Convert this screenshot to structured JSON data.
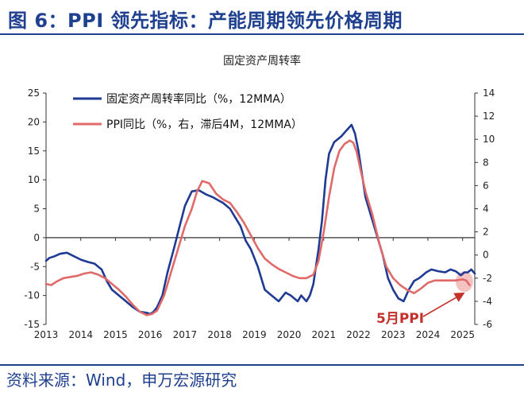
{
  "figure": {
    "title": "图 6：PPI 领先指标：产能周期领先价格周期",
    "source": "资料来源：Wind，申万宏源研究"
  },
  "colors": {
    "title_blue": "#1f3f8f",
    "series_blue": "#1f3a93",
    "series_red": "#e06a6a",
    "annotation_red": "#c4302b",
    "highlight": "#f2b7b5"
  },
  "chart_data": {
    "type": "line",
    "title": "固定资产周转率",
    "annotation": "5月PPI",
    "x_labels": [
      "2013",
      "2014",
      "2015",
      "2016",
      "2017",
      "2018",
      "2019",
      "2020",
      "2021",
      "2022",
      "2023",
      "2024",
      "2025"
    ],
    "x_range": [
      2013.0,
      2025.35
    ],
    "y_left": {
      "range": [
        -15,
        25
      ],
      "ticks": [
        25,
        20,
        15,
        10,
        5,
        0,
        -5,
        -10,
        -15
      ]
    },
    "y_right": {
      "range": [
        -6,
        14
      ],
      "ticks": [
        14,
        12,
        10,
        8,
        6,
        4,
        2,
        0,
        -2,
        -4,
        -6
      ]
    },
    "legend_position": "top-left",
    "series": [
      {
        "name": "固定资产周转率同比（%，12MMA）",
        "axis": "left",
        "x": [
          2013.0,
          2013.1,
          2013.25,
          2013.4,
          2013.6,
          2013.8,
          2014.0,
          2014.2,
          2014.4,
          2014.6,
          2014.75,
          2014.9,
          2015.1,
          2015.3,
          2015.5,
          2015.7,
          2015.9,
          2016.0,
          2016.1,
          2016.2,
          2016.35,
          2016.5,
          2016.7,
          2016.85,
          2017.0,
          2017.2,
          2017.4,
          2017.6,
          2017.8,
          2017.95,
          2018.1,
          2018.3,
          2018.45,
          2018.6,
          2018.75,
          2018.9,
          2019.1,
          2019.3,
          2019.5,
          2019.7,
          2019.9,
          2020.05,
          2020.15,
          2020.25,
          2020.35,
          2020.5,
          2020.6,
          2020.7,
          2020.85,
          2020.95,
          2021.05,
          2021.15,
          2021.3,
          2021.5,
          2021.65,
          2021.8,
          2021.9,
          2022.0,
          2022.1,
          2022.2,
          2022.35,
          2022.5,
          2022.7,
          2022.85,
          2023.0,
          2023.15,
          2023.3,
          2023.45,
          2023.6,
          2023.75,
          2023.85,
          2023.95,
          2024.1,
          2024.3,
          2024.5,
          2024.65,
          2024.8,
          2024.95,
          2025.05,
          2025.15,
          2025.25,
          2025.35
        ],
        "values": [
          -4.0,
          -3.5,
          -3.2,
          -2.8,
          -2.6,
          -3.2,
          -3.8,
          -4.2,
          -4.5,
          -5.5,
          -7.5,
          -9.0,
          -10.0,
          -11.0,
          -12.0,
          -12.8,
          -13.0,
          -13.2,
          -12.8,
          -12.0,
          -10.0,
          -6.0,
          -1.5,
          2.0,
          5.5,
          8.0,
          8.2,
          7.5,
          7.0,
          6.5,
          6.0,
          5.0,
          3.5,
          2.0,
          -0.5,
          -2.0,
          -5.0,
          -9.0,
          -10.0,
          -11.0,
          -9.5,
          -10.0,
          -10.5,
          -11.0,
          -10.0,
          -11.0,
          -10.0,
          -8.0,
          -2.0,
          3.0,
          10.0,
          14.5,
          16.5,
          17.5,
          18.5,
          19.5,
          18.0,
          15.0,
          11.0,
          7.0,
          4.0,
          1.0,
          -3.0,
          -7.0,
          -9.0,
          -10.5,
          -11.0,
          -9.0,
          -7.5,
          -7.0,
          -6.5,
          -6.0,
          -5.5,
          -5.8,
          -6.0,
          -5.5,
          -5.8,
          -6.5,
          -6.0,
          -6.0,
          -5.5,
          -6.2
        ]
      },
      {
        "name": "PPI同比（%，右，滞后4M，12MMA）",
        "axis": "right",
        "x": [
          2013.0,
          2013.15,
          2013.3,
          2013.5,
          2013.7,
          2013.9,
          2014.1,
          2014.3,
          2014.5,
          2014.7,
          2014.9,
          2015.1,
          2015.3,
          2015.5,
          2015.7,
          2015.9,
          2016.05,
          2016.2,
          2016.4,
          2016.6,
          2016.8,
          2017.0,
          2017.2,
          2017.35,
          2017.5,
          2017.7,
          2017.9,
          2018.1,
          2018.3,
          2018.5,
          2018.7,
          2018.9,
          2019.1,
          2019.3,
          2019.5,
          2019.7,
          2019.9,
          2020.1,
          2020.3,
          2020.5,
          2020.7,
          2020.85,
          2021.0,
          2021.15,
          2021.3,
          2021.45,
          2021.6,
          2021.75,
          2021.85,
          2021.95,
          2022.05,
          2022.2,
          2022.4,
          2022.6,
          2022.8,
          2023.0,
          2023.2,
          2023.4,
          2023.6,
          2023.8,
          2024.0,
          2024.2,
          2024.4,
          2024.6,
          2024.8,
          2025.0,
          2025.1,
          2025.2
        ],
        "values": [
          -2.5,
          -2.6,
          -2.3,
          -2.0,
          -1.9,
          -1.8,
          -1.6,
          -1.5,
          -1.7,
          -2.0,
          -2.5,
          -3.0,
          -3.6,
          -4.3,
          -4.9,
          -5.2,
          -5.1,
          -4.8,
          -3.5,
          -1.5,
          0.5,
          2.5,
          4.0,
          5.5,
          6.4,
          6.2,
          5.3,
          4.8,
          4.5,
          3.7,
          2.8,
          1.7,
          0.6,
          -0.3,
          -0.8,
          -1.2,
          -1.5,
          -1.8,
          -2.0,
          -2.0,
          -1.7,
          -0.5,
          2.0,
          5.0,
          7.5,
          9.0,
          9.6,
          9.9,
          9.7,
          8.9,
          7.5,
          5.5,
          3.5,
          1.0,
          -1.0,
          -2.0,
          -2.6,
          -3.0,
          -3.3,
          -2.9,
          -2.4,
          -2.2,
          -2.2,
          -2.2,
          -2.2,
          -2.1,
          -2.2,
          -2.6
        ]
      }
    ]
  }
}
